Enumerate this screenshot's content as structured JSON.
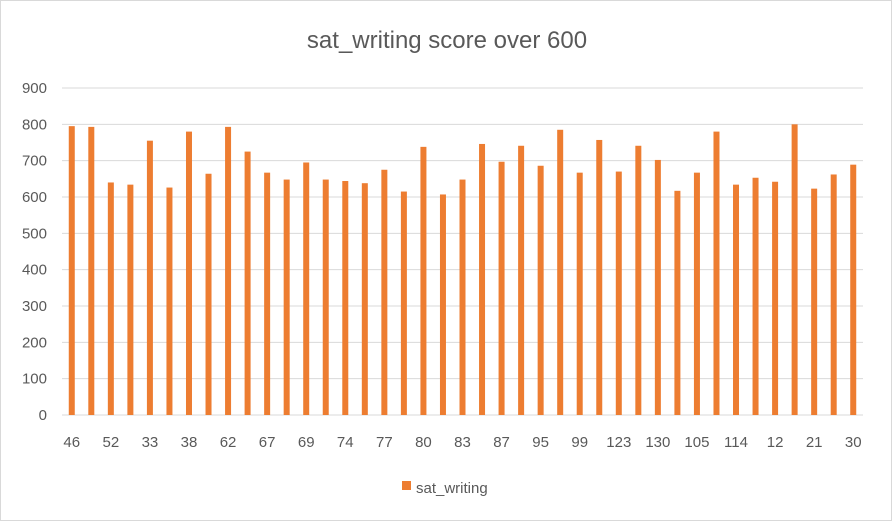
{
  "chart_data": {
    "type": "bar",
    "title": "sat_writing score over 600",
    "xlabel": "",
    "ylabel": "",
    "ylim": [
      0,
      900
    ],
    "yticks": [
      0,
      100,
      200,
      300,
      400,
      500,
      600,
      700,
      800,
      900
    ],
    "grid": true,
    "legend": "bottom",
    "categories": [
      "46",
      "",
      "52",
      "",
      "33",
      "",
      "38",
      "",
      "62",
      "",
      "67",
      "",
      "69",
      "",
      "74",
      "",
      "77",
      "",
      "80",
      "",
      "83",
      "",
      "87",
      "",
      "95",
      "",
      "99",
      "",
      "123",
      "",
      "130",
      "",
      "105",
      "",
      "114",
      "",
      "12",
      "",
      "21",
      "",
      "30"
    ],
    "series": [
      {
        "name": "sat_writing",
        "color": "#ED7D31",
        "values": [
          795,
          793,
          640,
          634,
          755,
          626,
          780,
          664,
          793,
          725,
          667,
          648,
          695,
          648,
          644,
          638,
          675,
          615,
          738,
          607,
          648,
          746,
          697,
          741,
          686,
          785,
          667,
          757,
          670,
          741,
          702,
          617,
          667,
          780,
          634,
          653,
          642,
          800,
          623,
          662,
          689
        ]
      }
    ]
  }
}
